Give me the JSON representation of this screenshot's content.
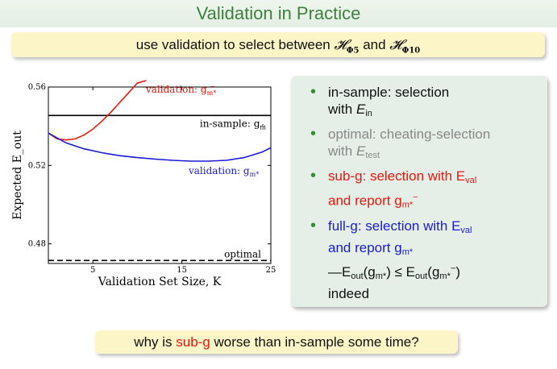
{
  "slide": {
    "title": "Validation in Practice",
    "subtitle_pre": "use validation to select between ",
    "subtitle_h5": "𝓗",
    "subtitle_h5_sub": "Φ5",
    "subtitle_and": " and ",
    "subtitle_h10": "𝓗",
    "subtitle_h10_sub": "Φ10",
    "question_pre": "why is ",
    "question_red": "sub-g",
    "question_post": " worse than in-sample some time?"
  },
  "bullets": [
    {
      "line1": "in-sample: selection",
      "line2_pre": "with ",
      "line2_math": "E",
      "line2_sub": "in"
    },
    {
      "line1": "optimal: cheating-selection",
      "line2_pre": "with ",
      "line2_math": "E",
      "line2_sub": "test"
    },
    {
      "line1": "sub-g: selection with E",
      "line1_sub": "val",
      "line2": "and report g",
      "line2_sub": "m*",
      "line2_sup": "−"
    },
    {
      "line1": "full-g: selection with E",
      "line1_sub": "val",
      "line2": "and report g",
      "line2_sub": "m*",
      "line3": "—E",
      "line3_sub": "out",
      "line3_rest": "(g",
      "line3_sub2": "m*",
      "line3_mid": ") ≤ E",
      "line3_sub3": "out",
      "line3_rest2": "(g",
      "line3_sub4": "m*",
      "line3_sup4": "−",
      "line3_end": ")",
      "line4": "indeed"
    }
  ],
  "chart_data": {
    "type": "line",
    "xlabel": "Validation Set Size, K",
    "ylabel": "Expected E_out",
    "xlim": [
      0,
      25
    ],
    "ylim": [
      0.47,
      0.56
    ],
    "xticks": [
      5,
      15,
      25
    ],
    "yticks": [
      0.48,
      0.52,
      0.56
    ],
    "ytick_labels": [
      "0.48",
      "0.52",
      "0.56"
    ],
    "xtick_labels": [
      "5",
      "15",
      "25"
    ],
    "colors": {
      "in_sample": "#000000",
      "optimal": "#000000",
      "sub_g": "#e8190f",
      "full_g": "#1a1ad8"
    },
    "series": [
      {
        "name": "in-sample: g_m̂",
        "label": "in-sample: g",
        "label_sub": "m̂",
        "x": [
          0,
          25
        ],
        "y": [
          0.5455,
          0.5455
        ]
      },
      {
        "name": "optimal",
        "label": "optimal",
        "dashed": true,
        "x": [
          0,
          25
        ],
        "y": [
          0.4715,
          0.4715
        ]
      },
      {
        "name": "validation: g_m*^-",
        "label": "validation: g",
        "label_sub": "m*",
        "label_sup": "−",
        "x": [
          0,
          1,
          2,
          3,
          4,
          5,
          6,
          7,
          8,
          9,
          10,
          11
        ],
        "y": [
          0.5365,
          0.5335,
          0.533,
          0.5335,
          0.5355,
          0.5385,
          0.5425,
          0.547,
          0.552,
          0.557,
          0.562,
          0.5675
        ]
      },
      {
        "name": "validation: g_m*",
        "label": "validation: g",
        "label_sub": "m*",
        "x": [
          0,
          2,
          4,
          6,
          8,
          10,
          12,
          14,
          16,
          18,
          20,
          22,
          24,
          25
        ],
        "y": [
          0.5365,
          0.5315,
          0.5285,
          0.5265,
          0.525,
          0.524,
          0.5232,
          0.5226,
          0.5222,
          0.5222,
          0.5226,
          0.524,
          0.5268,
          0.529
        ]
      }
    ]
  }
}
